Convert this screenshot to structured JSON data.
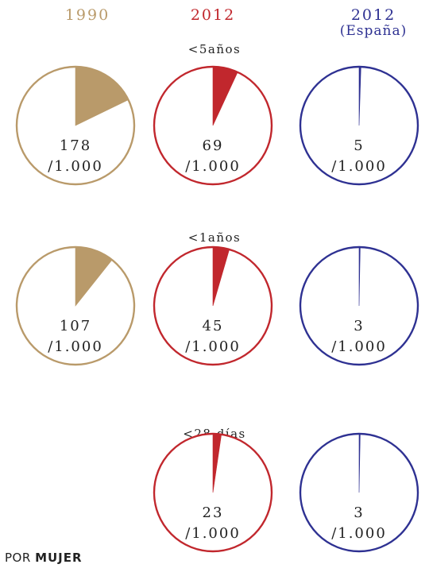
{
  "columns": [
    {
      "label": "1990",
      "color": "#b99a6a"
    },
    {
      "label": "2012",
      "color": "#c1272d"
    },
    {
      "label": "2012",
      "sublabel": "(España)",
      "color": "#2e3192"
    }
  ],
  "footer": {
    "prefix": "POR",
    "emphasis": "MUJER"
  },
  "chart_data": {
    "type": "pie",
    "unit": "/1.000",
    "total": 1000,
    "groups": [
      {
        "label": "<5años",
        "pies": [
          {
            "column": "1990",
            "value": 178,
            "value_label": "178",
            "unit_label": "/1.000"
          },
          {
            "column": "2012",
            "value": 69,
            "value_label": "69",
            "unit_label": "/1.000"
          },
          {
            "column": "2012 (España)",
            "value": 5,
            "value_label": "5",
            "unit_label": "/1.000"
          }
        ]
      },
      {
        "label": "<1años",
        "pies": [
          {
            "column": "1990",
            "value": 107,
            "value_label": "107",
            "unit_label": "/1.000"
          },
          {
            "column": "2012",
            "value": 45,
            "value_label": "45",
            "unit_label": "/1.000"
          },
          {
            "column": "2012 (España)",
            "value": 3,
            "value_label": "3",
            "unit_label": "/1.000"
          }
        ]
      },
      {
        "label": "<28 días",
        "pies": [
          {
            "column": "2012",
            "value": 23,
            "value_label": "23",
            "unit_label": "/1.000"
          },
          {
            "column": "2012 (España)",
            "value": 3,
            "value_label": "3",
            "unit_label": "/1.000"
          }
        ]
      }
    ]
  }
}
